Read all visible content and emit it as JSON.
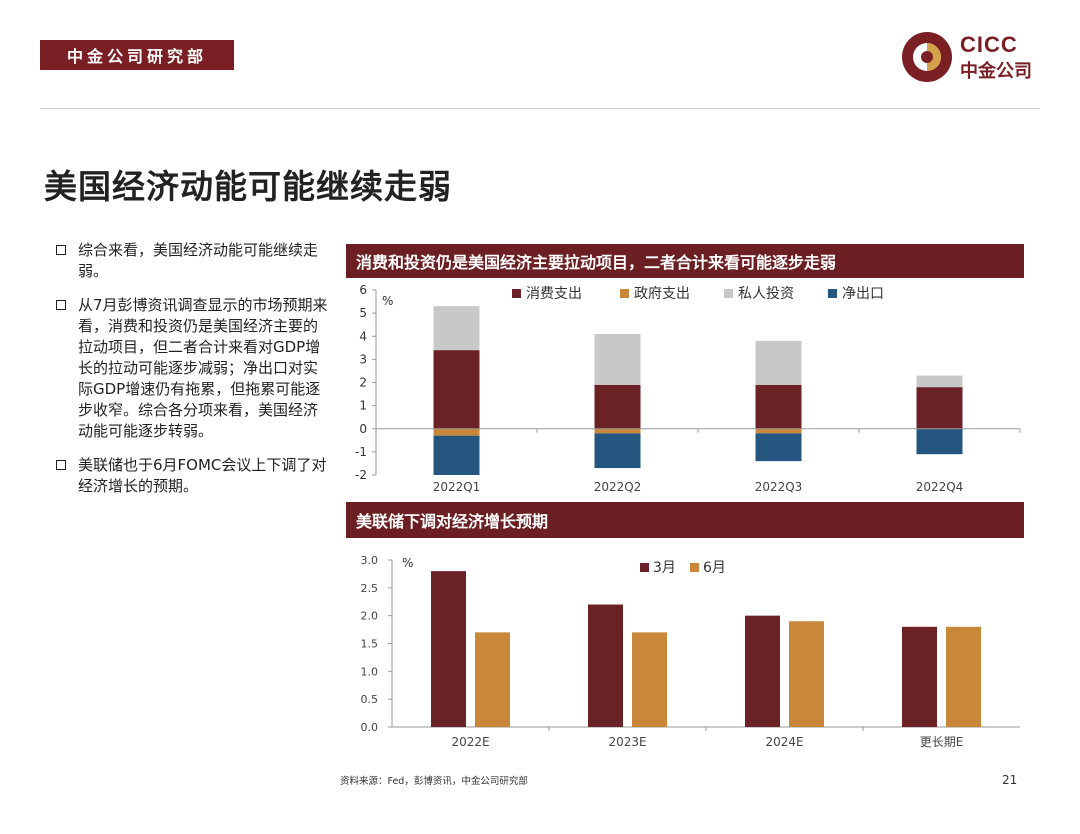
{
  "header": {
    "department": "中金公司研究部",
    "logo_en": "CICC",
    "logo_cn": "中金公司",
    "brand_color": "#7a1f24"
  },
  "title": "美国经济动能可能继续走弱",
  "bullets": [
    "综合来看，美国经济动能可能继续走弱。",
    "从7月彭博资讯调查显示的市场预期来看，消费和投资仍是美国经济主要的拉动项目，但二者合计来看对GDP增长的拉动可能逐步减弱；净出口对实际GDP增速仍有拖累，但拖累可能逐步收窄。综合各分项来看，美国经济动能可能逐步转弱。",
    "美联储也于6月FOMC会议上下调了对经济增长的预期。"
  ],
  "chart_data": [
    {
      "type": "bar",
      "stacked": true,
      "title": "消费和投资仍是美国经济主要拉动项目，二者合计来看可能逐步走弱",
      "unit": "%",
      "categories": [
        "2022Q1",
        "2022Q2",
        "2022Q3",
        "2022Q4"
      ],
      "ylim": [
        -2,
        6
      ],
      "yticks": [
        6,
        5,
        4,
        3,
        2,
        1,
        0,
        -1,
        -2
      ],
      "legend_position": "top",
      "series": [
        {
          "name": "消费支出",
          "color": "#6b2226",
          "values": [
            3.4,
            1.9,
            1.9,
            1.8
          ]
        },
        {
          "name": "政府支出",
          "color": "#c9873a",
          "values": [
            -0.3,
            -0.2,
            -0.2,
            0.0
          ]
        },
        {
          "name": "私人投资",
          "color": "#c8c8c8",
          "values": [
            1.9,
            2.2,
            1.9,
            0.5
          ]
        },
        {
          "name": "净出口",
          "color": "#255680",
          "values": [
            -1.7,
            -1.5,
            -1.2,
            -1.1
          ]
        }
      ]
    },
    {
      "type": "bar",
      "title": "美联储下调对经济增长预期",
      "unit": "%",
      "categories": [
        "2022E",
        "2023E",
        "2024E",
        "更长期E"
      ],
      "ylim": [
        0,
        3
      ],
      "yticks": [
        "3.0",
        "2.5",
        "2.0",
        "1.5",
        "1.0",
        "0.5",
        "0.0"
      ],
      "legend_position": "top-right",
      "series": [
        {
          "name": "3月",
          "color": "#6b2226",
          "values": [
            2.8,
            2.2,
            2.0,
            1.8
          ]
        },
        {
          "name": "6月",
          "color": "#c9873a",
          "values": [
            1.7,
            1.7,
            1.9,
            1.8
          ]
        }
      ]
    }
  ],
  "footer": {
    "source": "资料来源：Fed，彭博资讯，中金公司研究部",
    "page": "21"
  }
}
